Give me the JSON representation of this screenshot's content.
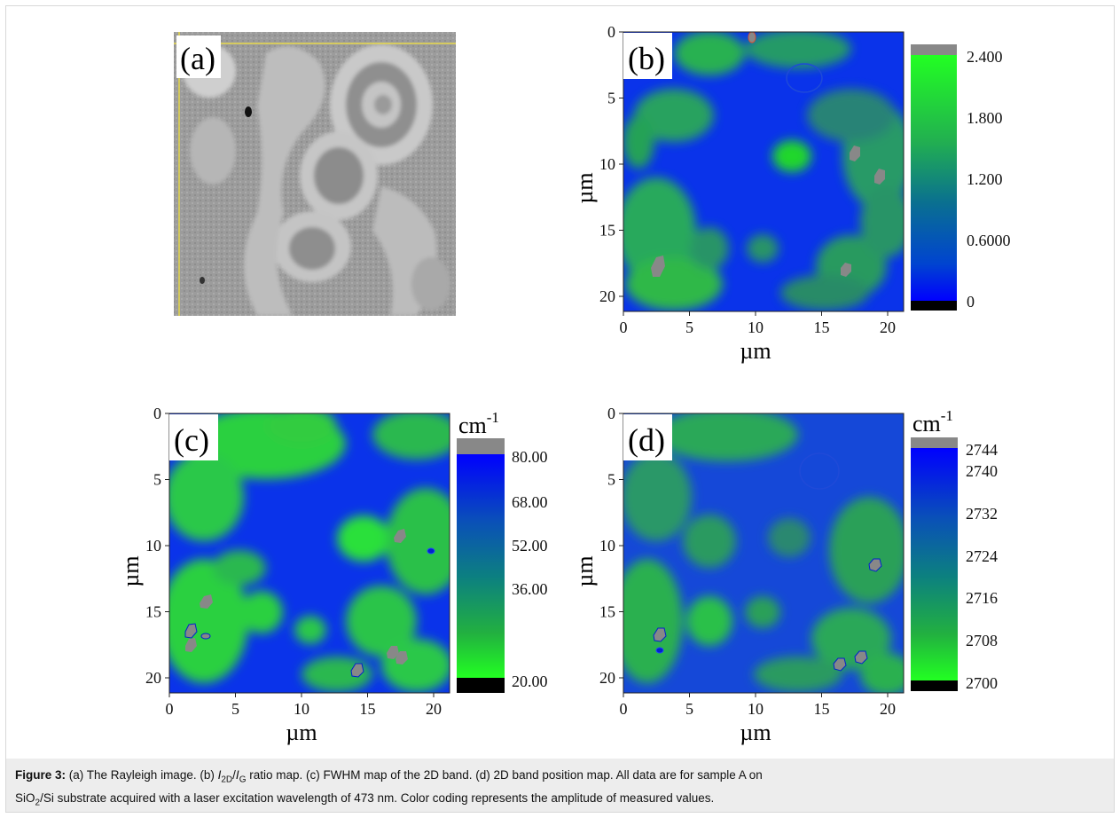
{
  "figure": {
    "panels": {
      "a": {
        "label": "(a)"
      },
      "b": {
        "label": "(b)",
        "xlabel": "µm",
        "ylabel": "µm",
        "x_ticks": [
          "0",
          "5",
          "10",
          "15",
          "20"
        ],
        "y_ticks": [
          "0",
          "5",
          "10",
          "15",
          "20"
        ],
        "colorbar_unit": "",
        "colorbar_ticks": [
          "2.400",
          "1.800",
          "1.200",
          "0.6000",
          "0"
        ]
      },
      "c": {
        "label": "(c)",
        "xlabel": "µm",
        "ylabel": "µm",
        "x_ticks": [
          "0",
          "5",
          "10",
          "15",
          "20"
        ],
        "y_ticks": [
          "0",
          "5",
          "10",
          "15",
          "20"
        ],
        "colorbar_unit": "cm",
        "colorbar_unit_sup": "-1",
        "colorbar_ticks": [
          "80.00",
          "68.00",
          "52.00",
          "36.00",
          "20.00"
        ]
      },
      "d": {
        "label": "(d)",
        "xlabel": "µm",
        "ylabel": "µm",
        "x_ticks": [
          "0",
          "5",
          "10",
          "15",
          "20"
        ],
        "y_ticks": [
          "0",
          "5",
          "10",
          "15",
          "20"
        ],
        "colorbar_unit": "cm",
        "colorbar_unit_sup": "-1",
        "colorbar_ticks": [
          "2744",
          "2740",
          "2732",
          "2724",
          "2716",
          "2708",
          "2700"
        ]
      }
    },
    "colors": {
      "blue": "#0033ee",
      "green": "#22e022",
      "gray": "#888888",
      "black": "#000000"
    }
  },
  "caption": {
    "lead": "Figure 3:",
    "text_1": " (a) The Rayleigh image. (b) ",
    "i2d": "I",
    "sub_2d": "2D",
    "slash": "/",
    "ig": "I",
    "sub_g": "G",
    "text_2": " ratio map. (c) FWHM map of the 2D band. (d) 2D band position map. All data are for sample A on",
    "line2_a": "SiO",
    "line2_sub": "2",
    "line2_b": "/Si substrate acquired with a laser excitation wavelength of 473 nm. Color coding represents the amplitude of measured values."
  },
  "chart_data": [
    {
      "type": "heatmap",
      "panel": "(b)",
      "xlabel": "µm",
      "ylabel": "µm",
      "xlim": [
        0,
        21
      ],
      "ylim": [
        0,
        21
      ],
      "colorbar": {
        "min": 0,
        "max": 2.4,
        "ticks": [
          2.4,
          1.8,
          1.2,
          0.6,
          0
        ]
      }
    },
    {
      "type": "heatmap",
      "panel": "(c)",
      "xlabel": "µm",
      "ylabel": "µm",
      "xlim": [
        0,
        21
      ],
      "ylim": [
        0,
        21
      ],
      "colorbar": {
        "unit": "cm-1",
        "min": 20,
        "max": 80,
        "ticks": [
          80,
          68,
          52,
          36,
          20
        ]
      }
    },
    {
      "type": "heatmap",
      "panel": "(d)",
      "xlabel": "µm",
      "ylabel": "µm",
      "xlim": [
        0,
        21
      ],
      "ylim": [
        0,
        21
      ],
      "colorbar": {
        "unit": "cm-1",
        "min": 2700,
        "max": 2744,
        "ticks": [
          2744,
          2740,
          2732,
          2724,
          2716,
          2708,
          2700
        ]
      }
    }
  ]
}
